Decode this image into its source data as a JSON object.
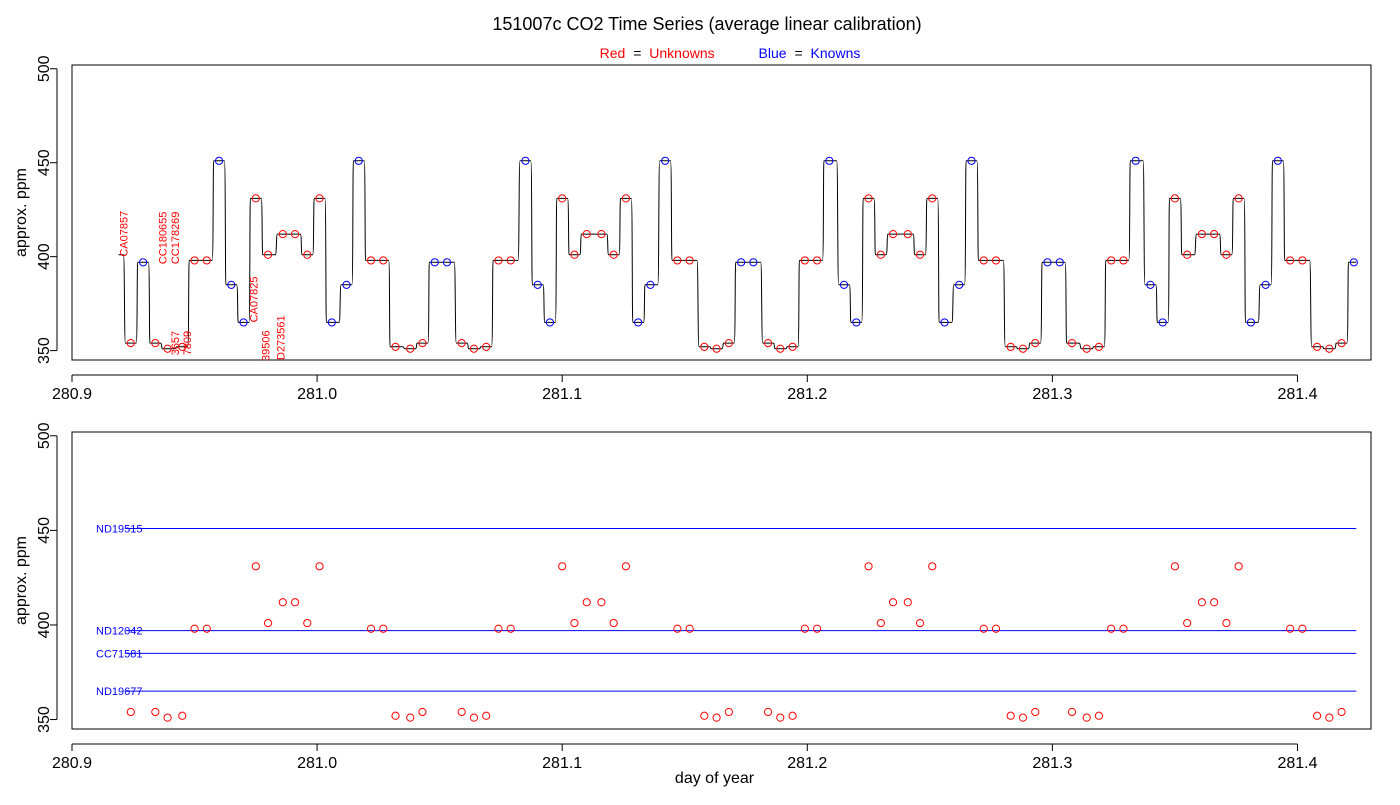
{
  "title": "151007c   CO2 Time Series (average linear calibration)",
  "legend": {
    "red_prefix": "Red",
    "eq": "=",
    "red_word": "Unknowns",
    "blue_prefix": "Blue",
    "blue_word": "Knowns"
  },
  "colors": {
    "unknown": "#ff0000",
    "known": "#0000ff",
    "trace": "#000000",
    "axis": "#000000"
  },
  "chart_data": [
    {
      "type": "line",
      "ylabel": "approx. ppm",
      "xlabel": "",
      "xlim": [
        280.9,
        281.43
      ],
      "ylim": [
        345,
        502
      ],
      "x_ticks": [
        280.9,
        281.0,
        281.1,
        281.2,
        281.3,
        281.4
      ],
      "x_tick_labels": [
        "280.9",
        "281.0",
        "281.1",
        "281.2",
        "281.3",
        "281.4"
      ],
      "y_ticks": [
        350,
        400,
        450,
        500
      ],
      "y_tick_labels": [
        "350",
        "400",
        "450",
        "500"
      ],
      "trace_start": 280.919,
      "trace_end": 281.424,
      "samples_unknown": [
        {
          "x": 280.924,
          "y": 354
        },
        {
          "x": 280.934,
          "y": 354
        },
        {
          "x": 280.939,
          "y": 351
        },
        {
          "x": 280.945,
          "y": 352
        },
        {
          "x": 280.95,
          "y": 398
        },
        {
          "x": 280.955,
          "y": 398
        },
        {
          "x": 280.975,
          "y": 431
        },
        {
          "x": 280.98,
          "y": 401
        },
        {
          "x": 280.986,
          "y": 412
        },
        {
          "x": 280.991,
          "y": 412
        },
        {
          "x": 280.996,
          "y": 401
        },
        {
          "x": 281.001,
          "y": 431
        },
        {
          "x": 281.022,
          "y": 398
        },
        {
          "x": 281.027,
          "y": 398
        },
        {
          "x": 281.032,
          "y": 352
        },
        {
          "x": 281.038,
          "y": 351
        },
        {
          "x": 281.043,
          "y": 354
        },
        {
          "x": 281.059,
          "y": 354
        },
        {
          "x": 281.064,
          "y": 351
        },
        {
          "x": 281.069,
          "y": 352
        },
        {
          "x": 281.074,
          "y": 398
        },
        {
          "x": 281.079,
          "y": 398
        },
        {
          "x": 281.1,
          "y": 431
        },
        {
          "x": 281.105,
          "y": 401
        },
        {
          "x": 281.11,
          "y": 412
        },
        {
          "x": 281.116,
          "y": 412
        },
        {
          "x": 281.121,
          "y": 401
        },
        {
          "x": 281.126,
          "y": 431
        },
        {
          "x": 281.147,
          "y": 398
        },
        {
          "x": 281.152,
          "y": 398
        },
        {
          "x": 281.158,
          "y": 352
        },
        {
          "x": 281.163,
          "y": 351
        },
        {
          "x": 281.168,
          "y": 354
        },
        {
          "x": 281.184,
          "y": 354
        },
        {
          "x": 281.189,
          "y": 351
        },
        {
          "x": 281.194,
          "y": 352
        },
        {
          "x": 281.199,
          "y": 398
        },
        {
          "x": 281.204,
          "y": 398
        },
        {
          "x": 281.225,
          "y": 431
        },
        {
          "x": 281.23,
          "y": 401
        },
        {
          "x": 281.235,
          "y": 412
        },
        {
          "x": 281.241,
          "y": 412
        },
        {
          "x": 281.246,
          "y": 401
        },
        {
          "x": 281.251,
          "y": 431
        },
        {
          "x": 281.272,
          "y": 398
        },
        {
          "x": 281.277,
          "y": 398
        },
        {
          "x": 281.283,
          "y": 352
        },
        {
          "x": 281.288,
          "y": 351
        },
        {
          "x": 281.293,
          "y": 354
        },
        {
          "x": 281.308,
          "y": 354
        },
        {
          "x": 281.314,
          "y": 351
        },
        {
          "x": 281.319,
          "y": 352
        },
        {
          "x": 281.324,
          "y": 398
        },
        {
          "x": 281.329,
          "y": 398
        },
        {
          "x": 281.35,
          "y": 431
        },
        {
          "x": 281.355,
          "y": 401
        },
        {
          "x": 281.361,
          "y": 412
        },
        {
          "x": 281.366,
          "y": 412
        },
        {
          "x": 281.371,
          "y": 401
        },
        {
          "x": 281.376,
          "y": 431
        },
        {
          "x": 281.397,
          "y": 398
        },
        {
          "x": 281.402,
          "y": 398
        },
        {
          "x": 281.408,
          "y": 352
        },
        {
          "x": 281.413,
          "y": 351
        },
        {
          "x": 281.418,
          "y": 354
        }
      ],
      "samples_known": [
        {
          "x": 280.929,
          "y": 397
        },
        {
          "x": 280.96,
          "y": 451
        },
        {
          "x": 280.965,
          "y": 385
        },
        {
          "x": 280.97,
          "y": 365
        },
        {
          "x": 281.006,
          "y": 365
        },
        {
          "x": 281.012,
          "y": 385
        },
        {
          "x": 281.017,
          "y": 451
        },
        {
          "x": 281.048,
          "y": 397
        },
        {
          "x": 281.053,
          "y": 397
        },
        {
          "x": 281.085,
          "y": 451
        },
        {
          "x": 281.09,
          "y": 385
        },
        {
          "x": 281.095,
          "y": 365
        },
        {
          "x": 281.131,
          "y": 365
        },
        {
          "x": 281.136,
          "y": 385
        },
        {
          "x": 281.142,
          "y": 451
        },
        {
          "x": 281.173,
          "y": 397
        },
        {
          "x": 281.178,
          "y": 397
        },
        {
          "x": 281.209,
          "y": 451
        },
        {
          "x": 281.215,
          "y": 385
        },
        {
          "x": 281.22,
          "y": 365
        },
        {
          "x": 281.256,
          "y": 365
        },
        {
          "x": 281.262,
          "y": 385
        },
        {
          "x": 281.267,
          "y": 451
        },
        {
          "x": 281.298,
          "y": 397
        },
        {
          "x": 281.303,
          "y": 397
        },
        {
          "x": 281.334,
          "y": 451
        },
        {
          "x": 281.34,
          "y": 385
        },
        {
          "x": 281.345,
          "y": 365
        },
        {
          "x": 281.381,
          "y": 365
        },
        {
          "x": 281.387,
          "y": 385
        },
        {
          "x": 281.392,
          "y": 451
        },
        {
          "x": 281.423,
          "y": 397
        }
      ],
      "annotations": [
        {
          "text": "CA07857",
          "x": 280.9226,
          "y": 400
        },
        {
          "text": "CC180655",
          "x": 280.9386,
          "y": 396
        },
        {
          "text": "CC178269",
          "x": 280.9436,
          "y": 396
        },
        {
          "text": "3657",
          "x": 280.9436,
          "y": 347.5
        },
        {
          "text": "7809",
          "x": 280.9486,
          "y": 347.5
        },
        {
          "text": "CA07825",
          "x": 280.9756,
          "y": 365
        },
        {
          "text": "39506",
          "x": 280.9806,
          "y": 344.5
        },
        {
          "text": "D273561",
          "x": 280.9866,
          "y": 345
        }
      ]
    },
    {
      "type": "scatter",
      "ylabel": "approx. ppm",
      "xlabel": "day of year",
      "xlim": [
        280.9,
        281.43
      ],
      "ylim": [
        345,
        502
      ],
      "x_ticks": [
        280.9,
        281.0,
        281.1,
        281.2,
        281.3,
        281.4
      ],
      "x_tick_labels": [
        "280.9",
        "281.0",
        "281.1",
        "281.2",
        "281.3",
        "281.4"
      ],
      "y_ticks": [
        350,
        400,
        450,
        500
      ],
      "y_tick_labels": [
        "350",
        "400",
        "450",
        "500"
      ],
      "reference_lines": [
        {
          "name": "ND19515",
          "y": 451,
          "x_start": 280.922,
          "x_end": 281.424
        },
        {
          "name": "ND12042",
          "y": 397,
          "x_start": 280.922,
          "x_end": 281.424
        },
        {
          "name": "CC71581",
          "y": 385,
          "x_start": 280.922,
          "x_end": 281.424
        },
        {
          "name": "ND19677",
          "y": 365,
          "x_start": 280.922,
          "x_end": 281.424
        }
      ]
    }
  ]
}
